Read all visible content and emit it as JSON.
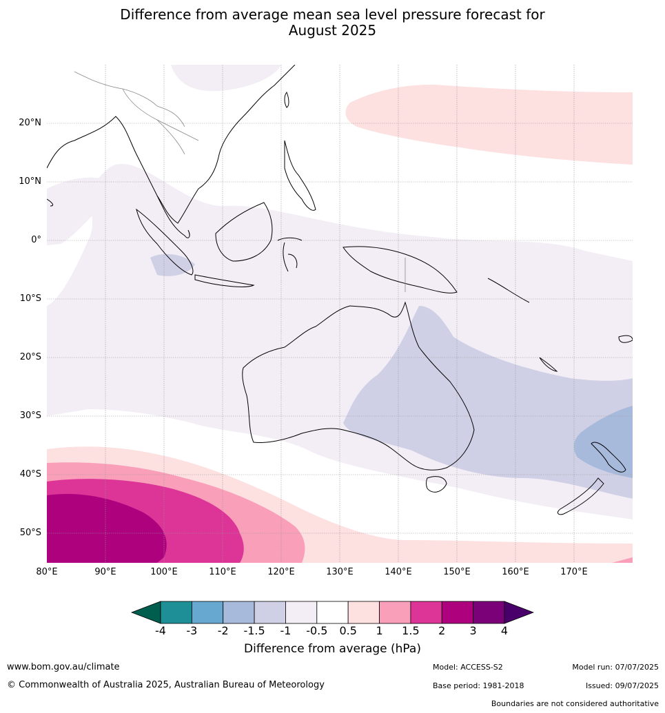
{
  "title_line1": "Difference from average mean sea level pressure forecast for",
  "title_line2": "August 2025",
  "lat_labels": [
    "20°N",
    "10°N",
    "0°",
    "10°S",
    "20°S",
    "30°S",
    "40°S",
    "50°S"
  ],
  "lon_labels": [
    "80°E",
    "90°E",
    "100°E",
    "110°E",
    "120°E",
    "130°E",
    "140°E",
    "150°E",
    "160°E",
    "170°E"
  ],
  "colorbar": {
    "ticks": [
      "-4",
      "-3",
      "-2",
      "-1.5",
      "-1",
      "-0.5",
      "0.5",
      "1",
      "1.5",
      "2",
      "3",
      "4"
    ],
    "colors": [
      "#005e4e",
      "#1e8f97",
      "#66a8d0",
      "#a8badb",
      "#cfd0e5",
      "#f3edf5",
      "#ffffff",
      "#fde0e0",
      "#f99fb9",
      "#dd3497",
      "#ae017e",
      "#7a0177",
      "#49006a"
    ],
    "label": "Difference from average (hPa)"
  },
  "footer": {
    "website": "www.bom.gov.au/climate",
    "copyright": "© Commonwealth of Australia 2025, Australian Bureau of Meteorology",
    "model": "Model: ACCESS-S2",
    "base_period": "Base period: 1981-2018",
    "model_run": "Model run: 07/07/2025",
    "issued": "Issued: 09/07/2025",
    "disclaimer": "Boundaries are not considered authoritative"
  }
}
